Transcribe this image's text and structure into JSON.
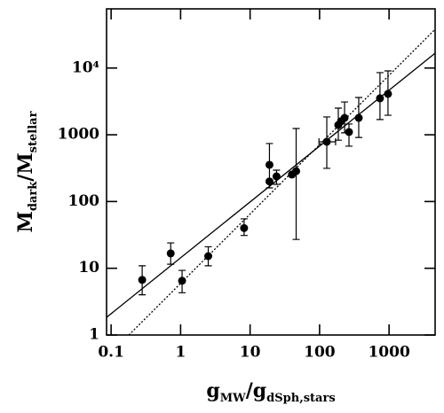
{
  "chart_data": {
    "type": "scatter",
    "log_x": true,
    "log_y": true,
    "xlim": [
      0.086,
      4600
    ],
    "ylim": [
      1,
      77000
    ],
    "xticks": [
      0.1,
      1,
      10,
      100,
      1000
    ],
    "yticks": [
      1,
      10,
      100,
      1000,
      {
        "value": 10000,
        "label": "10⁴"
      }
    ],
    "xlabel_parts": [
      {
        "text": "g",
        "sub": false
      },
      {
        "text": "MW",
        "sub": true
      },
      {
        "text": "/g",
        "sub": false
      },
      {
        "text": "dSph,stars",
        "sub": true
      }
    ],
    "ylabel_parts": [
      {
        "text": "M",
        "sub": false
      },
      {
        "text": "dark",
        "sub": true
      },
      {
        "text": "/M",
        "sub": false
      },
      {
        "text": "stellar",
        "sub": true
      }
    ],
    "series": [
      {
        "color": "#000000",
        "x": [
          0.28,
          0.72,
          1.05,
          2.5,
          8.2,
          19,
          19,
          24,
          46,
          40,
          127,
          186,
          203,
          229,
          265,
          366,
          740,
          965
        ],
        "values": [
          6.7,
          16.7,
          6.5,
          15.2,
          40,
          355,
          200,
          238,
          285,
          254,
          785,
          1400,
          1590,
          1790,
          1100,
          1790,
          3520,
          4100
        ],
        "y_lower": [
          4.0,
          11.5,
          4.3,
          10.9,
          31,
          160,
          null,
          181,
          27,
          null,
          314,
          830,
          null,
          1070,
          675,
          910,
          1690,
          1960
        ],
        "y_upper": [
          10.9,
          24,
          9.3,
          21,
          55,
          740,
          null,
          295,
          1240,
          null,
          1850,
          2510,
          null,
          3100,
          1450,
          3620,
          8530,
          9060
        ],
        "x_lower": [
          null,
          null,
          null,
          null,
          null,
          null,
          null,
          null,
          null,
          null,
          98,
          null,
          null,
          null,
          null,
          null,
          null,
          null
        ],
        "x_upper": [
          null,
          null,
          null,
          null,
          null,
          null,
          null,
          null,
          null,
          null,
          170,
          null,
          null,
          null,
          null,
          null,
          null,
          null
        ]
      }
    ],
    "lines": [
      {
        "color": "#000000",
        "dashed": false,
        "x": [
          0.086,
          4600
        ],
        "values": [
          1.84,
          16700
        ]
      },
      {
        "color": "#000000",
        "dashed": true,
        "x": [
          0.18,
          4600
        ],
        "values": [
          1,
          38000
        ]
      }
    ]
  }
}
